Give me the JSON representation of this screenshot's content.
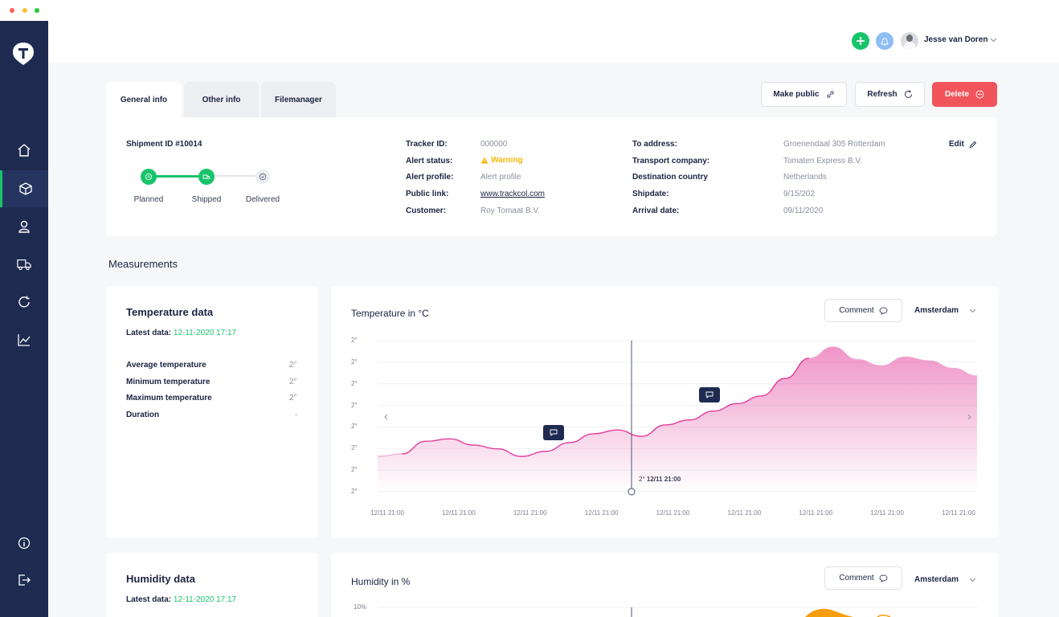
{
  "colors": {
    "sidebar": "#1e2a50",
    "accent_green": "#18c46a",
    "delete_red": "#f2545b",
    "chart_pink": "#e23d9a",
    "humidity_orange": "#f59d0c",
    "warning": "#f2b705"
  },
  "user": {
    "name": "Jesse van Doren"
  },
  "tabs": [
    {
      "label": "General info"
    },
    {
      "label": "Other info"
    },
    {
      "label": "Filemanager"
    }
  ],
  "actions": {
    "make_public": "Make public",
    "refresh": "Refresh",
    "delete": "Delete"
  },
  "shipment": {
    "title": "Shipment ID #10014",
    "steps": [
      {
        "label": "Planned",
        "state": "done"
      },
      {
        "label": "Shipped",
        "state": "done"
      },
      {
        "label": "Delivered",
        "state": "pending"
      }
    ],
    "info_left": [
      {
        "label": "Tracker ID:",
        "value": "000000"
      },
      {
        "label": "Alert status:",
        "value": "Warning"
      },
      {
        "label": "Alert profile:",
        "value": "Alert profile"
      },
      {
        "label": "Public link:",
        "value": "www.trackcol.com"
      },
      {
        "label": "Customer:",
        "value": "Roy Tomaat B.V."
      }
    ],
    "info_right": [
      {
        "label": "To address:",
        "value": "Groenendaal 305 Rotterdam"
      },
      {
        "label": "Transport company:",
        "value": "Tomaten Express B.V."
      },
      {
        "label": "Destination country",
        "value": "Netherlands"
      },
      {
        "label": "Shipdate:",
        "value": "9/15/202"
      },
      {
        "label": "Arrival date:",
        "value": "09/11/2020"
      }
    ],
    "edit": "Edit"
  },
  "measurements": {
    "title": "Measurements"
  },
  "temperature": {
    "card_title": "Temperature data",
    "latest_label": "Latest data:",
    "latest_value": "12-11-2020 17:17",
    "stats": [
      {
        "label": "Average temperature",
        "value": "2°"
      },
      {
        "label": "Minimum temperature",
        "value": "2°"
      },
      {
        "label": "Maximum temperature",
        "value": "2°"
      },
      {
        "label": "Duration",
        "value": "-"
      }
    ],
    "chart_title": "Temperature in °C",
    "comment": "Comment",
    "location": "Amsterdam",
    "cursor_value": "2°",
    "cursor_time": "12/11 21:00"
  },
  "humidity": {
    "card_title": "Humidity data",
    "latest_label": "Latest data:",
    "latest_value": "12-11-2020 17:17",
    "chart_title": "Humidity in %",
    "comment": "Comment",
    "location": "Amsterdam",
    "y_top": "10%"
  },
  "chart_data": {
    "type": "area",
    "title": "Temperature in °C",
    "yticks": [
      "2°",
      "2°",
      "2°",
      "2°",
      "2°",
      "2°",
      "2°",
      "2°"
    ],
    "xticks": [
      "12/11 21:00",
      "12/11 21:00",
      "12/11 21:00",
      "12/11 21:00",
      "12/11 21:00",
      "12/11 21:00",
      "12/11 21:00",
      "12/11 21:00",
      "12/11 21:00"
    ],
    "x": [
      0,
      4,
      8,
      12,
      16,
      20,
      24,
      28,
      32,
      36,
      40,
      44,
      48,
      52,
      56,
      60,
      64,
      68,
      72,
      76,
      80,
      84,
      88,
      92,
      96,
      100
    ],
    "y": [
      28,
      30,
      40,
      42,
      37,
      34,
      28,
      32,
      39,
      46,
      49,
      44,
      53,
      57,
      64,
      70,
      76,
      90,
      106,
      115,
      105,
      100,
      107,
      104,
      98,
      92
    ],
    "ylim": [
      0,
      120
    ],
    "grid": true
  }
}
